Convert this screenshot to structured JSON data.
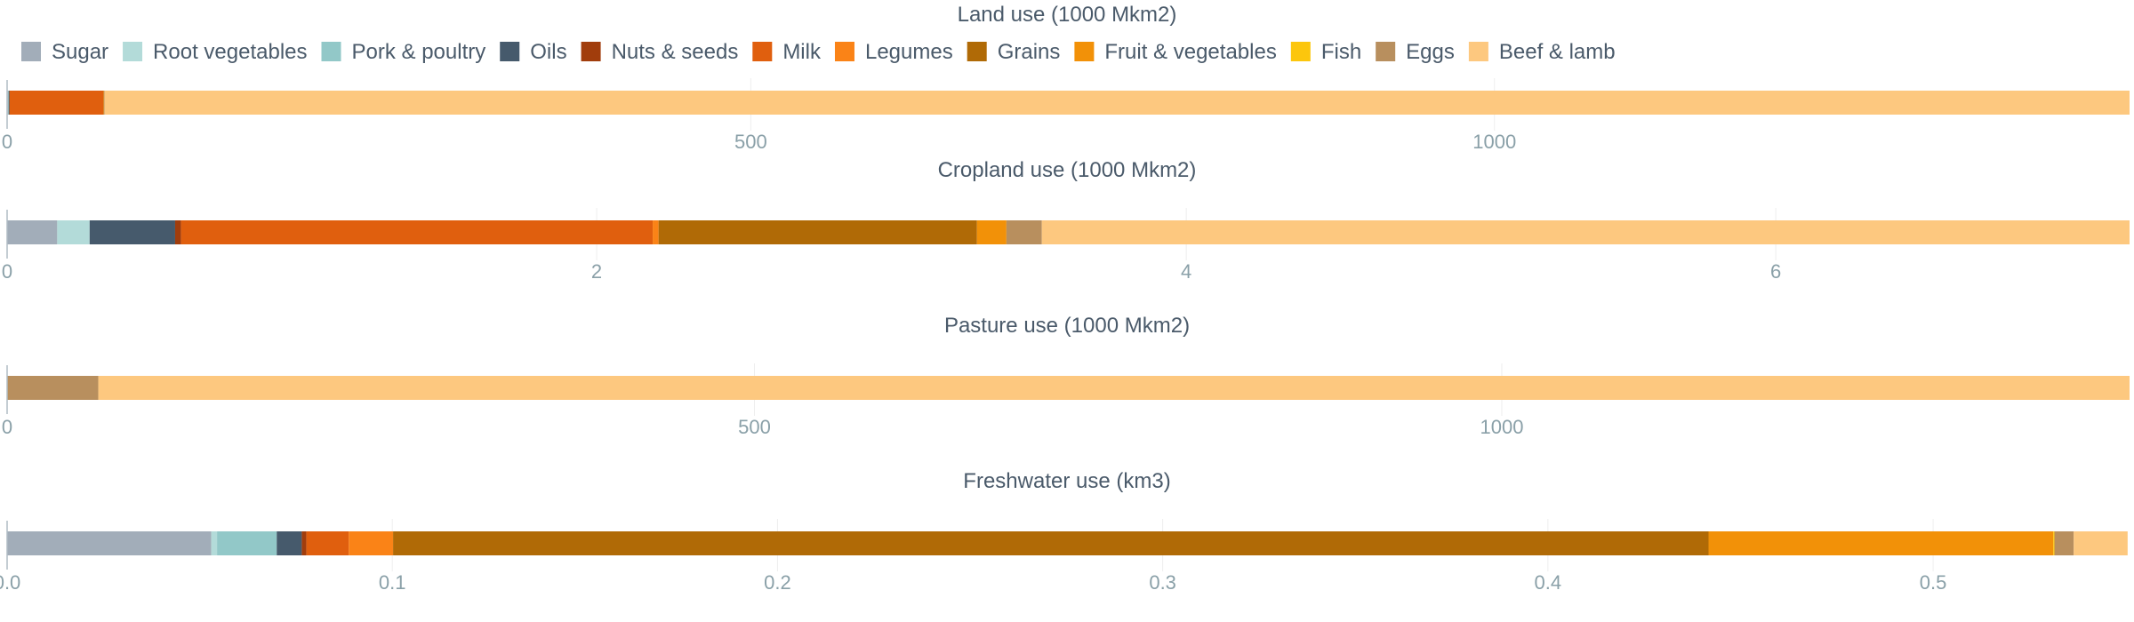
{
  "legend": [
    {
      "name": "Sugar",
      "color": "#a2adb9"
    },
    {
      "name": "Root vegetables",
      "color": "#b3dbd9"
    },
    {
      "name": "Pork & poultry",
      "color": "#92c8c8"
    },
    {
      "name": "Oils",
      "color": "#465a6c"
    },
    {
      "name": "Nuts & seeds",
      "color": "#a13d0c"
    },
    {
      "name": "Milk",
      "color": "#e05f0e"
    },
    {
      "name": "Legumes",
      "color": "#fa8317"
    },
    {
      "name": "Grains",
      "color": "#b06a06"
    },
    {
      "name": "Fruit & vegetables",
      "color": "#f29108"
    },
    {
      "name": "Fish",
      "color": "#fcc60d"
    },
    {
      "name": "Eggs",
      "color": "#b88f5e"
    },
    {
      "name": "Beef & lamb",
      "color": "#fdc87f"
    }
  ],
  "chart_data": [
    {
      "type": "bar",
      "orientation": "horizontal",
      "stacked": true,
      "title": "Land use (1000 Mkm2)",
      "xlim": [
        0,
        1427
      ],
      "ticks": [
        0,
        500,
        1000
      ],
      "tick_labels": [
        "0",
        "500",
        "1000"
      ],
      "series": [
        {
          "name": "Sugar",
          "value": 0.5
        },
        {
          "name": "Root vegetables",
          "value": 0.2
        },
        {
          "name": "Pork & poultry",
          "value": 0.3
        },
        {
          "name": "Oils",
          "value": 0.6
        },
        {
          "name": "Nuts & seeds",
          "value": 0.1
        },
        {
          "name": "Milk",
          "value": 63
        },
        {
          "name": "Legumes",
          "value": 0.1
        },
        {
          "name": "Grains",
          "value": 0.3
        },
        {
          "name": "Fruit & vegetables",
          "value": 0.1
        },
        {
          "name": "Fish",
          "value": 0
        },
        {
          "name": "Eggs",
          "value": 0.3
        },
        {
          "name": "Beef & lamb",
          "value": 1361.5
        }
      ]
    },
    {
      "type": "bar",
      "orientation": "horizontal",
      "stacked": true,
      "title": "Cropland use (1000 Mkm2)",
      "xlim": [
        0,
        7.2
      ],
      "ticks": [
        0,
        2,
        4,
        6
      ],
      "tick_labels": [
        "0",
        "2",
        "4",
        "6"
      ],
      "series": [
        {
          "name": "Sugar",
          "value": 0.17
        },
        {
          "name": "Root vegetables",
          "value": 0.11
        },
        {
          "name": "Pork & poultry",
          "value": 0
        },
        {
          "name": "Oils",
          "value": 0.29
        },
        {
          "name": "Nuts & seeds",
          "value": 0.02
        },
        {
          "name": "Milk",
          "value": 1.6
        },
        {
          "name": "Legumes",
          "value": 0.02
        },
        {
          "name": "Grains",
          "value": 1.08
        },
        {
          "name": "Fruit & vegetables",
          "value": 0.1
        },
        {
          "name": "Fish",
          "value": 0
        },
        {
          "name": "Eggs",
          "value": 0.12
        },
        {
          "name": "Beef & lamb",
          "value": 3.69
        }
      ]
    },
    {
      "type": "bar",
      "orientation": "horizontal",
      "stacked": true,
      "title": "Pasture use (1000 Mkm2)",
      "xlim": [
        0,
        1420
      ],
      "ticks": [
        0,
        500,
        1000
      ],
      "tick_labels": [
        "0",
        "500",
        "1000"
      ],
      "series": [
        {
          "name": "Sugar",
          "value": 0
        },
        {
          "name": "Root vegetables",
          "value": 0
        },
        {
          "name": "Pork & poultry",
          "value": 0
        },
        {
          "name": "Oils",
          "value": 0
        },
        {
          "name": "Nuts & seeds",
          "value": 0
        },
        {
          "name": "Milk",
          "value": 0
        },
        {
          "name": "Legumes",
          "value": 0
        },
        {
          "name": "Grains",
          "value": 0
        },
        {
          "name": "Fruit & vegetables",
          "value": 0
        },
        {
          "name": "Fish",
          "value": 0
        },
        {
          "name": "Eggs",
          "value": 61
        },
        {
          "name": "Beef & lamb",
          "value": 1359
        }
      ]
    },
    {
      "type": "bar",
      "orientation": "horizontal",
      "stacked": true,
      "title": "Freshwater use (km3)",
      "xlim": [
        0,
        0.551
      ],
      "ticks": [
        0,
        0.1,
        0.2,
        0.3,
        0.4,
        0.5
      ],
      "tick_labels": [
        "0.0",
        "0.1",
        "0.2",
        "0.3",
        "0.4",
        "0.5"
      ],
      "series": [
        {
          "name": "Sugar",
          "value": 0.053
        },
        {
          "name": "Root vegetables",
          "value": 0.0015
        },
        {
          "name": "Pork & poultry",
          "value": 0.0155
        },
        {
          "name": "Oils",
          "value": 0.0065
        },
        {
          "name": "Nuts & seeds",
          "value": 0.0012
        },
        {
          "name": "Milk",
          "value": 0.011
        },
        {
          "name": "Legumes",
          "value": 0.0115
        },
        {
          "name": "Grains",
          "value": 0.3415
        },
        {
          "name": "Fruit & vegetables",
          "value": 0.0895
        },
        {
          "name": "Fish",
          "value": 0.0003
        },
        {
          "name": "Eggs",
          "value": 0.005
        },
        {
          "name": "Beef & lamb",
          "value": 0.014
        }
      ]
    }
  ]
}
